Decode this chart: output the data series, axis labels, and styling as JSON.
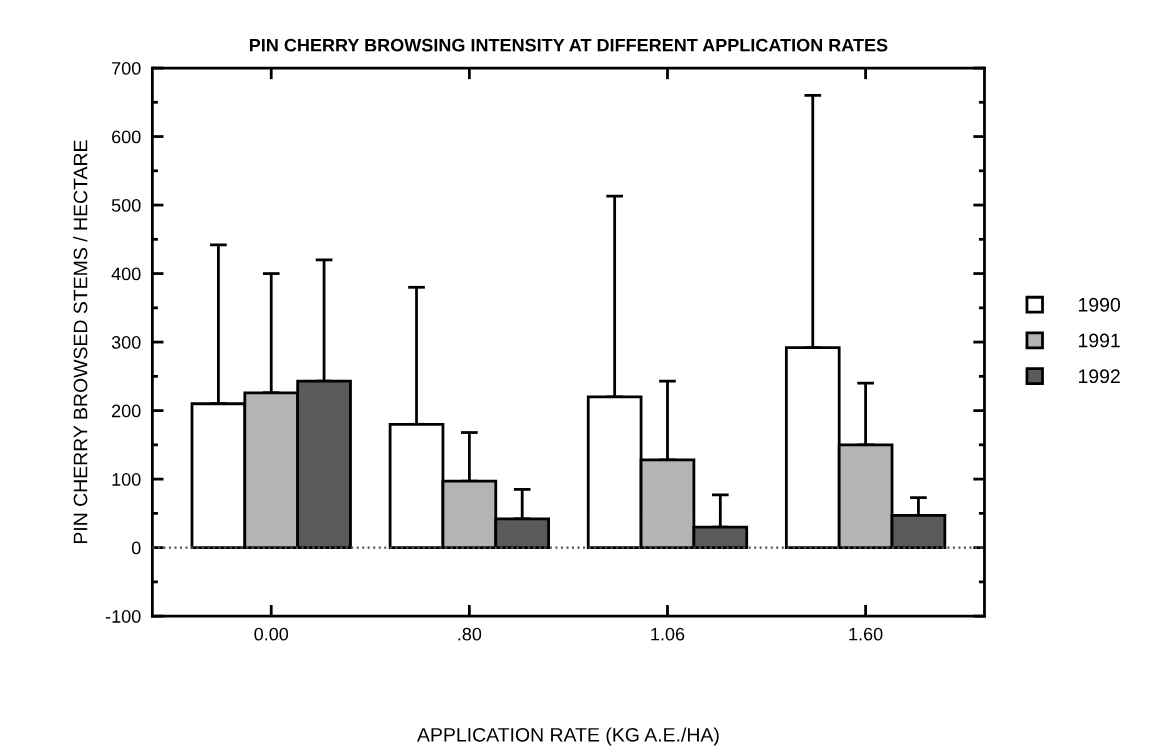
{
  "chart_data": {
    "type": "bar",
    "title": "PIN CHERRY BROWSING INTENSITY AT DIFFERENT APPLICATION RATES",
    "xlabel": "APPLICATION RATE (KG A.E./HA)",
    "ylabel": "PIN CHERRY BROWSED STEMS / HECTARE",
    "categories": [
      "0.00",
      ".80",
      "1.06",
      "1.60"
    ],
    "series": [
      {
        "name": "1990",
        "color": "#ffffff",
        "values": [
          210,
          180,
          220,
          292
        ],
        "errors": [
          [
            210,
            442
          ],
          [
            180,
            380
          ],
          [
            220,
            513
          ],
          [
            292,
            660
          ]
        ]
      },
      {
        "name": "1991",
        "color": "#b4b4b4",
        "values": [
          226,
          97,
          128,
          150
        ],
        "errors": [
          [
            226,
            400
          ],
          [
            97,
            168
          ],
          [
            128,
            243
          ],
          [
            150,
            240
          ]
        ]
      },
      {
        "name": "1992",
        "color": "#5a5a5a",
        "values": [
          243,
          42,
          30,
          47
        ],
        "errors": [
          [
            243,
            420
          ],
          [
            42,
            85
          ],
          [
            30,
            77
          ],
          [
            47,
            73
          ]
        ]
      }
    ],
    "ylim": [
      -100,
      700
    ],
    "yticks": [
      -100,
      0,
      100,
      200,
      300,
      400,
      500,
      600,
      700
    ],
    "ref_lines": [
      {
        "axis": "y",
        "value": 0,
        "line_style": "dotted",
        "color": "#555555"
      }
    ],
    "legend": "right",
    "grid": false
  }
}
